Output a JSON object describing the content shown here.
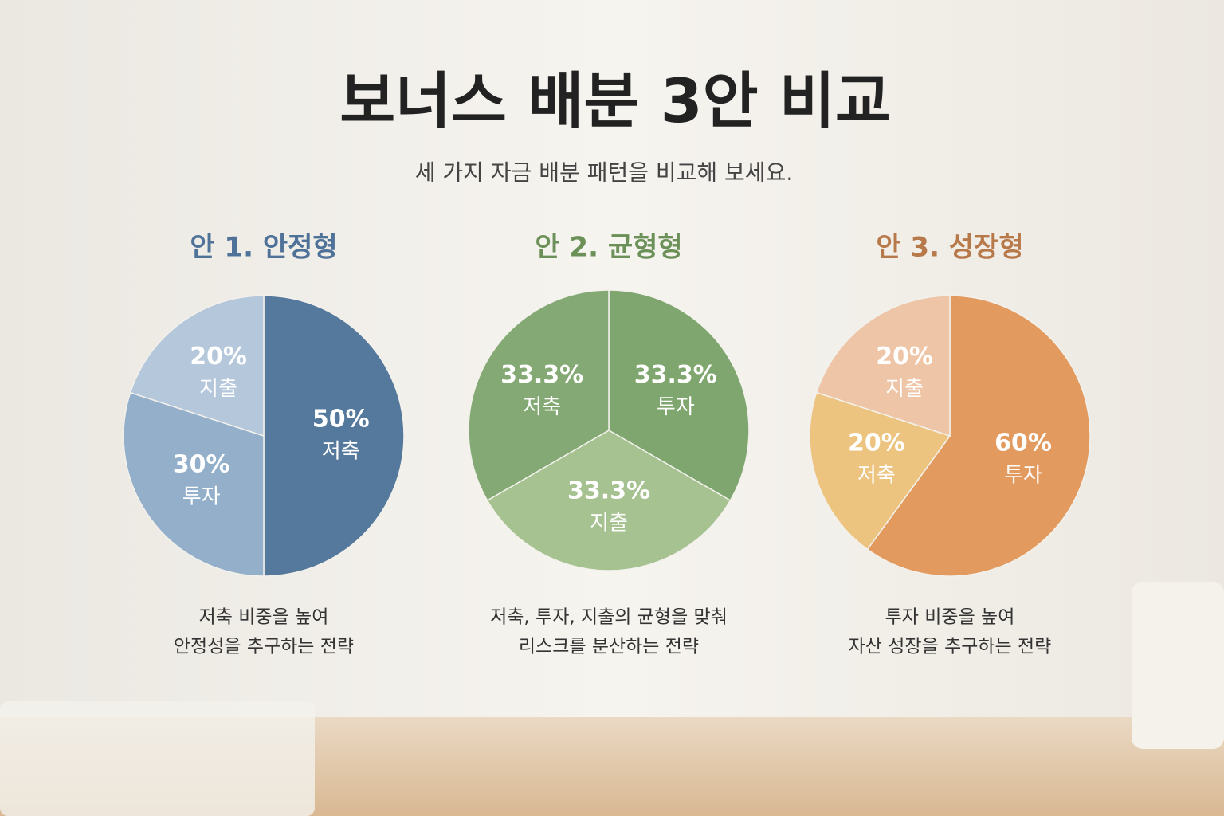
{
  "title": "보너스 배분 3안 비교",
  "subtitle": "세 가지 자금 배분 패턴을 비교해 보세요.",
  "chart_data": [
    {
      "type": "pie",
      "title": "안 1. 안정형",
      "title_color": "#4f7299",
      "categories": [
        "저축",
        "투자",
        "지출"
      ],
      "values": [
        50,
        30,
        20
      ],
      "value_labels": [
        "50%",
        "30%",
        "20%"
      ],
      "colors": [
        "#55799c",
        "#93afca",
        "#b4c7db"
      ],
      "description": [
        "저축 비중을 높여",
        "안정성을 추구하는 전략"
      ]
    },
    {
      "type": "pie",
      "title": "안 2. 균형형",
      "title_color": "#6b9058",
      "categories": [
        "투자",
        "지출",
        "저축"
      ],
      "values": [
        33.3,
        33.3,
        33.3
      ],
      "value_labels": [
        "33.3%",
        "33.3%",
        "33.3%"
      ],
      "colors": [
        "#7fa66e",
        "#a6c290",
        "#85a974"
      ],
      "description": [
        "저축, 투자, 지출의 균형을 맞춰",
        "리스크를 분산하는 전략"
      ]
    },
    {
      "type": "pie",
      "title": "안 3. 성장형",
      "title_color": "#b7784a",
      "categories": [
        "투자",
        "저축",
        "지출"
      ],
      "values": [
        60,
        20,
        20
      ],
      "value_labels": [
        "60%",
        "20%",
        "20%"
      ],
      "colors": [
        "#e29a5e",
        "#ecc47f",
        "#eec5a6"
      ],
      "description": [
        "투자 비중을 높여",
        "자산 성장을 추구하는 전략"
      ]
    }
  ]
}
